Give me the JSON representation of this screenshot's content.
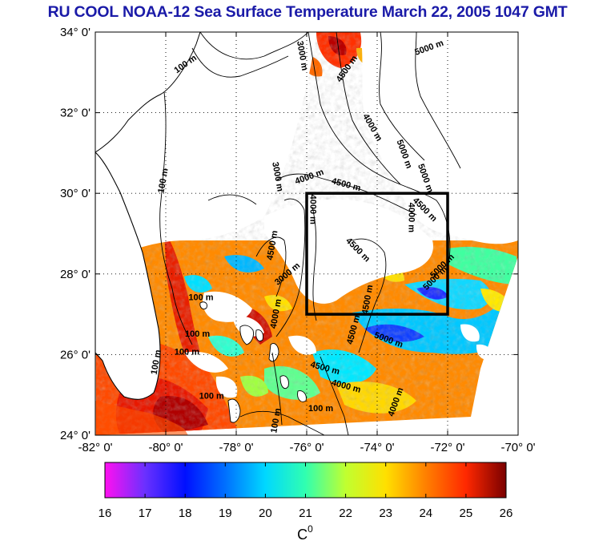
{
  "title": "RU COOL  NOAA-12 Sea Surface Temperature March 22, 2005 1047 GMT",
  "map": {
    "lon_range": [
      -82,
      -70
    ],
    "lat_range": [
      24,
      34
    ],
    "x_ticks": [
      {
        "lon": -82,
        "label": "-82° 0'"
      },
      {
        "lon": -80,
        "label": "-80° 0'"
      },
      {
        "lon": -78,
        "label": "-78° 0'"
      },
      {
        "lon": -76,
        "label": "-76° 0'"
      },
      {
        "lon": -74,
        "label": "-74° 0'"
      },
      {
        "lon": -72,
        "label": "-72° 0'"
      },
      {
        "lon": -70,
        "label": "-70° 0'"
      }
    ],
    "y_ticks": [
      {
        "lat": 34,
        "label": "34° 0'"
      },
      {
        "lat": 32,
        "label": "32° 0'"
      },
      {
        "lat": 30,
        "label": "30° 0'"
      },
      {
        "lat": 28,
        "label": "28° 0'"
      },
      {
        "lat": 26,
        "label": "26° 0'"
      },
      {
        "lat": 24,
        "label": "24° 0'"
      }
    ],
    "grid": "dotted",
    "study_box": {
      "lon_min": -76.0,
      "lon_max": -72.0,
      "lat_min": 27.0,
      "lat_max": 30.0
    },
    "contour_labels": [
      {
        "text": "100 m",
        "lon": -79.4,
        "lat": 33.15,
        "angle": -35
      },
      {
        "text": "100 m",
        "lon": -80.0,
        "lat": 30.3,
        "angle": -80
      },
      {
        "text": "100 m",
        "lon": -79.0,
        "lat": 27.35,
        "angle": 0
      },
      {
        "text": "100 m",
        "lon": -79.1,
        "lat": 26.45,
        "angle": 0
      },
      {
        "text": "100 m",
        "lon": -79.4,
        "lat": 26.0,
        "angle": 0
      },
      {
        "text": "100 m",
        "lon": -80.2,
        "lat": 25.8,
        "angle": -80
      },
      {
        "text": "100 m",
        "lon": -78.7,
        "lat": 24.9,
        "angle": 0
      },
      {
        "text": "100 m",
        "lon": -75.6,
        "lat": 24.6,
        "angle": 0
      },
      {
        "text": "100 m",
        "lon": -76.8,
        "lat": 24.35,
        "angle": -80
      },
      {
        "text": "3000 m",
        "lon": -76.2,
        "lat": 33.4,
        "angle": 80
      },
      {
        "text": "4500 m",
        "lon": -74.8,
        "lat": 33.05,
        "angle": -55
      },
      {
        "text": "5000 m",
        "lon": -72.5,
        "lat": 33.55,
        "angle": -20
      },
      {
        "text": "4000 m",
        "lon": -74.2,
        "lat": 31.6,
        "angle": 60
      },
      {
        "text": "5000 m",
        "lon": -73.3,
        "lat": 30.95,
        "angle": 70
      },
      {
        "text": "5000 m",
        "lon": -72.7,
        "lat": 30.35,
        "angle": 70
      },
      {
        "text": "3000 m",
        "lon": -76.9,
        "lat": 30.4,
        "angle": 80
      },
      {
        "text": "4000 m",
        "lon": -75.9,
        "lat": 30.35,
        "angle": -20
      },
      {
        "text": "4500 m",
        "lon": -74.9,
        "lat": 30.15,
        "angle": 15
      },
      {
        "text": "4000 m",
        "lon": -75.9,
        "lat": 29.6,
        "angle": 90
      },
      {
        "text": "4000 m",
        "lon": -73.1,
        "lat": 29.4,
        "angle": 90
      },
      {
        "text": "4500 m",
        "lon": -72.7,
        "lat": 29.55,
        "angle": 45
      },
      {
        "text": "4500 m",
        "lon": -76.9,
        "lat": 28.7,
        "angle": -80
      },
      {
        "text": "3000 m",
        "lon": -76.5,
        "lat": 27.95,
        "angle": -40
      },
      {
        "text": "4500 m",
        "lon": -74.6,
        "lat": 28.55,
        "angle": 45
      },
      {
        "text": "5000 m",
        "lon": -72.3,
        "lat": 27.85,
        "angle": -45
      },
      {
        "text": "5000 m",
        "lon": -72.1,
        "lat": 28.15,
        "angle": -45
      },
      {
        "text": "4000 m",
        "lon": -76.8,
        "lat": 27.0,
        "angle": -80
      },
      {
        "text": "4500 m",
        "lon": -74.2,
        "lat": 27.35,
        "angle": -80
      },
      {
        "text": "4500 m",
        "lon": -74.6,
        "lat": 26.6,
        "angle": -75
      },
      {
        "text": "5000 m",
        "lon": -73.7,
        "lat": 26.3,
        "angle": 20
      },
      {
        "text": "4500 m",
        "lon": -75.5,
        "lat": 25.6,
        "angle": 15
      },
      {
        "text": "4000 m",
        "lon": -74.9,
        "lat": 25.15,
        "angle": 15
      },
      {
        "text": "4000 m",
        "lon": -73.4,
        "lat": 24.8,
        "angle": -70
      }
    ]
  },
  "colorbar": {
    "min": 16,
    "max": 26,
    "ticks": [
      "16",
      "17",
      "18",
      "19",
      "20",
      "21",
      "22",
      "23",
      "24",
      "25",
      "26"
    ],
    "unit": "C",
    "unit_superscript": "0",
    "colors": [
      "#ff10f0",
      "#6a30ff",
      "#0010ff",
      "#0070ff",
      "#00d8ff",
      "#30ffb0",
      "#c0ff30",
      "#ffe000",
      "#ff8000",
      "#ff2800",
      "#7a0000"
    ]
  },
  "colors": {
    "title": "#1a1aa8",
    "land": "#ffffff",
    "coast": "#000000",
    "box": "#000000"
  }
}
